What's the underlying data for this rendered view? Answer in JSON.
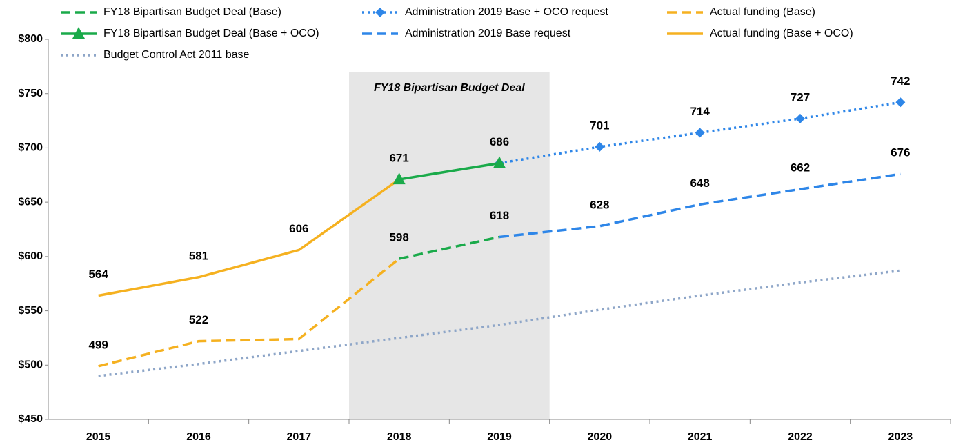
{
  "chart_data": {
    "type": "line",
    "categories": [
      "2015",
      "2016",
      "2017",
      "2018",
      "2019",
      "2020",
      "2021",
      "2022",
      "2023"
    ],
    "ylim": [
      450,
      800
    ],
    "yticks": [
      {
        "value": 450,
        "label": "$450"
      },
      {
        "value": 500,
        "label": "$500"
      },
      {
        "value": 550,
        "label": "$550"
      },
      {
        "value": 600,
        "label": "$600"
      },
      {
        "value": 650,
        "label": "$650"
      },
      {
        "value": 700,
        "label": "$700"
      },
      {
        "value": 750,
        "label": "$750"
      },
      {
        "value": 800,
        "label": "$800"
      }
    ],
    "annotation": "FY18 Bipartisan Budget Deal",
    "series": [
      {
        "name": "FY18 Bipartisan Budget Deal (Base)",
        "color": "#1aaa4a",
        "dash": "dashed",
        "values": [
          null,
          null,
          null,
          598,
          618,
          null,
          null,
          null,
          null
        ],
        "value_labels": [
          null,
          null,
          null,
          "598",
          null,
          null,
          null,
          null,
          null
        ]
      },
      {
        "name": "Administration 2019 Base + OCO request",
        "color": "#2e86e8",
        "dash": "dotted",
        "marker": "diamond",
        "values": [
          null,
          null,
          null,
          null,
          686,
          701,
          714,
          727,
          742
        ],
        "value_labels": [
          null,
          null,
          null,
          null,
          null,
          "701",
          "714",
          "727",
          "742"
        ]
      },
      {
        "name": "Actual funding (Base)",
        "color": "#f5b120",
        "dash": "dashed",
        "values": [
          499,
          522,
          524,
          598,
          null,
          null,
          null,
          null,
          null
        ],
        "value_labels": [
          "499",
          "522",
          null,
          null,
          null,
          null,
          null,
          null,
          null
        ]
      },
      {
        "name": "FY18 Bipartisan Budget Deal (Base + OCO)",
        "color": "#1aaa4a",
        "dash": "solid",
        "marker": "triangle",
        "values": [
          null,
          null,
          null,
          671,
          686,
          null,
          null,
          null,
          null
        ],
        "value_labels": [
          null,
          null,
          null,
          "671",
          "686",
          null,
          null,
          null,
          null
        ]
      },
      {
        "name": "Administration 2019 Base request",
        "color": "#2e86e8",
        "dash": "dashed",
        "values": [
          null,
          null,
          null,
          null,
          618,
          628,
          648,
          662,
          676
        ],
        "value_labels": [
          null,
          null,
          null,
          null,
          "618",
          "628",
          "648",
          "662",
          "676"
        ]
      },
      {
        "name": "Actual funding (Base + OCO)",
        "color": "#f5b120",
        "dash": "solid",
        "values": [
          564,
          581,
          606,
          671,
          null,
          null,
          null,
          null,
          null
        ],
        "value_labels": [
          "564",
          "581",
          "606",
          null,
          null,
          null,
          null,
          null,
          null
        ]
      },
      {
        "name": "Budget Control Act 2011 base",
        "color": "#8ea6c8",
        "dash": "dotted",
        "values": [
          490,
          501,
          513,
          525,
          537,
          551,
          564,
          576,
          587
        ]
      }
    ]
  }
}
